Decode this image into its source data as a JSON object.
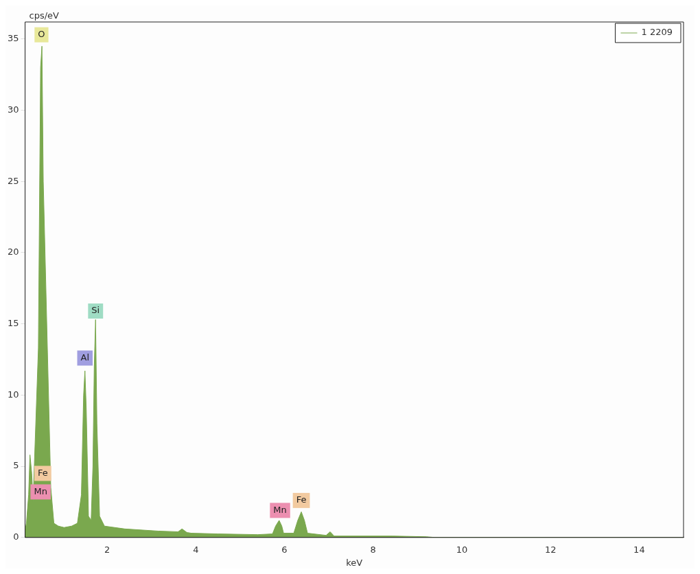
{
  "chart_data": {
    "type": "area",
    "xlabel": "keV",
    "ylabel": "cps/eV",
    "legend": "top right",
    "grid": false,
    "marker": "none",
    "xlim": [
      0.15,
      15
    ],
    "xticks": [
      2,
      4,
      6,
      8,
      10,
      12,
      14
    ],
    "ylim": [
      0,
      36.2
    ],
    "yticks": [
      0,
      5,
      10,
      15,
      20,
      25,
      30,
      35
    ],
    "series": [
      {
        "name": "1 2209",
        "color": "#7aa84e",
        "x": [
          0.15,
          0.18,
          0.23,
          0.26,
          0.3,
          0.33,
          0.45,
          0.5,
          0.53,
          0.56,
          0.73,
          0.8,
          0.9,
          1.03,
          1.2,
          1.33,
          1.42,
          1.47,
          1.5,
          1.53,
          1.58,
          1.64,
          1.68,
          1.71,
          1.74,
          1.77,
          1.83,
          1.94,
          2.4,
          3.15,
          3.6,
          3.69,
          3.8,
          3.9,
          4.5,
          5.4,
          5.73,
          5.8,
          5.88,
          5.94,
          5.98,
          6.21,
          6.3,
          6.38,
          6.45,
          6.52,
          6.94,
          7.03,
          7.12,
          8.45,
          9.2,
          9.36,
          15
        ],
        "values": [
          0.5,
          1,
          3,
          5.8,
          4.5,
          2.5,
          13.3,
          33,
          34.5,
          25,
          3.5,
          1,
          0.8,
          0.7,
          0.8,
          1,
          3,
          10,
          11.7,
          9,
          1.5,
          1.2,
          5,
          12,
          15.3,
          8,
          1.5,
          0.8,
          0.6,
          0.45,
          0.4,
          0.6,
          0.35,
          0.3,
          0.25,
          0.2,
          0.25,
          0.8,
          1.2,
          0.8,
          0.3,
          0.3,
          1.2,
          1.8,
          1.2,
          0.3,
          0.15,
          0.4,
          0.1,
          0.1,
          0.05,
          0.01,
          0
        ]
      }
    ],
    "annotations": [
      {
        "text": "O",
        "x": 0.52,
        "y": 35.3
      },
      {
        "text": "Si",
        "x": 1.74,
        "y": 15.9
      },
      {
        "text": "Al",
        "x": 1.5,
        "y": 12.6
      },
      {
        "text": "Fe",
        "x": 0.55,
        "y": 4.5
      },
      {
        "text": "Mn",
        "x": 0.5,
        "y": 3.2
      },
      {
        "text": "Mn",
        "x": 5.9,
        "y": 1.9
      },
      {
        "text": "Fe",
        "x": 6.38,
        "y": 2.6
      }
    ]
  }
}
